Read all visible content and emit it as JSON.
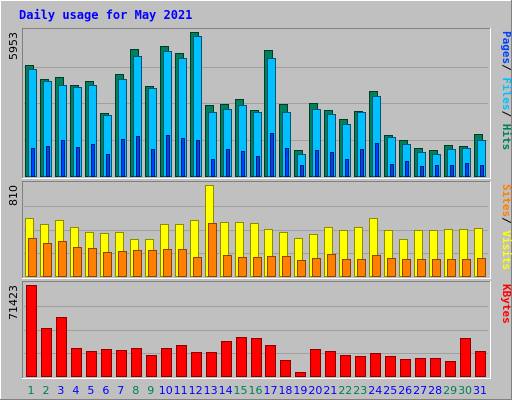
{
  "chart_data": [
    {
      "type": "bar",
      "title": "Daily usage for May 2021",
      "panel": "top",
      "y_max_label": "5953",
      "ylim": [
        0,
        5953
      ],
      "side_label_parts": [
        "Pages",
        "/",
        "Files",
        "/",
        "Hits"
      ],
      "categories": [
        "1",
        "2",
        "3",
        "4",
        "5",
        "6",
        "7",
        "8",
        "9",
        "10",
        "11",
        "12",
        "13",
        "14",
        "15",
        "16",
        "17",
        "18",
        "19",
        "20",
        "21",
        "22",
        "23",
        "24",
        "25",
        "26",
        "27",
        "28",
        "29",
        "30",
        "31"
      ],
      "weekend_days": [
        "1",
        "2",
        "8",
        "9",
        "15",
        "16",
        "22",
        "23",
        "29",
        "30"
      ],
      "series": [
        {
          "name": "Hits",
          "color": "#00805c",
          "values": [
            4570,
            4020,
            4080,
            3780,
            3920,
            2610,
            4200,
            5270,
            3700,
            5380,
            5070,
            5953,
            2940,
            2990,
            3200,
            2730,
            5200,
            2960,
            1080,
            3020,
            2740,
            2350,
            2680,
            3520,
            1690,
            1490,
            1170,
            1060,
            1300,
            1260,
            1750
          ]
        },
        {
          "name": "Files",
          "color": "#00c0ff",
          "values": [
            4440,
            3910,
            3780,
            3670,
            3750,
            2530,
            3990,
            4950,
            3650,
            5160,
            4860,
            5770,
            2650,
            2790,
            2940,
            2650,
            4870,
            2660,
            890,
            2790,
            2580,
            2130,
            2650,
            3300,
            1600,
            1330,
            980,
            900,
            1120,
            1160,
            1470
          ]
        },
        {
          "name": "Pages",
          "color": "#0040ff",
          "values": [
            1150,
            1260,
            1500,
            1180,
            1330,
            920,
            1530,
            1640,
            1100,
            1710,
            1580,
            1480,
            710,
            1100,
            1020,
            810,
            1790,
            1170,
            450,
            1080,
            990,
            710,
            1130,
            1350,
            490,
            610,
            430,
            470,
            470,
            530,
            470
          ]
        }
      ]
    },
    {
      "type": "bar",
      "panel": "middle",
      "y_max_label": "810",
      "ylim": [
        0,
        810
      ],
      "side_label_parts": [
        "Sites",
        "/",
        "Visits"
      ],
      "categories": [
        "1",
        "2",
        "3",
        "4",
        "5",
        "6",
        "7",
        "8",
        "9",
        "10",
        "11",
        "12",
        "13",
        "14",
        "15",
        "16",
        "17",
        "18",
        "19",
        "20",
        "21",
        "22",
        "23",
        "24",
        "25",
        "26",
        "27",
        "28",
        "29",
        "30",
        "31"
      ],
      "series": [
        {
          "name": "Visits",
          "color": "#ffff00",
          "values": [
            520,
            460,
            500,
            440,
            390,
            380,
            390,
            330,
            330,
            460,
            460,
            500,
            810,
            480,
            480,
            470,
            420,
            390,
            340,
            370,
            440,
            410,
            440,
            520,
            410,
            330,
            410,
            410,
            420,
            420,
            430
          ]
        },
        {
          "name": "Sites",
          "color": "#ff8000",
          "values": [
            340,
            290,
            310,
            260,
            250,
            210,
            220,
            230,
            230,
            240,
            240,
            170,
            470,
            190,
            170,
            170,
            180,
            180,
            140,
            160,
            200,
            150,
            150,
            190,
            160,
            150,
            150,
            150,
            150,
            150,
            160
          ]
        }
      ]
    },
    {
      "type": "bar",
      "panel": "bottom",
      "y_max_label": "71423",
      "ylim": [
        0,
        71423
      ],
      "side_label_parts": [
        "KBytes"
      ],
      "categories": [
        "1",
        "2",
        "3",
        "4",
        "5",
        "6",
        "7",
        "8",
        "9",
        "10",
        "11",
        "12",
        "13",
        "14",
        "15",
        "16",
        "17",
        "18",
        "19",
        "20",
        "21",
        "22",
        "23",
        "24",
        "25",
        "26",
        "27",
        "28",
        "29",
        "30",
        "31"
      ],
      "series": [
        {
          "name": "KBytes",
          "color": "#ff0000",
          "values": [
            71423,
            37600,
            46400,
            22200,
            19700,
            20900,
            20600,
            21600,
            16800,
            22100,
            24300,
            18800,
            18500,
            27400,
            30600,
            29500,
            24000,
            12200,
            2900,
            21200,
            19800,
            16500,
            16000,
            17800,
            16000,
            13700,
            13800,
            13900,
            12000,
            29500,
            19800
          ]
        }
      ]
    }
  ],
  "colors": {
    "background": "#c0c0c0",
    "title": "#0000ff",
    "weekend_label": "#00805c",
    "weekday_label": "#0000ff",
    "separator": "#ffffff"
  }
}
